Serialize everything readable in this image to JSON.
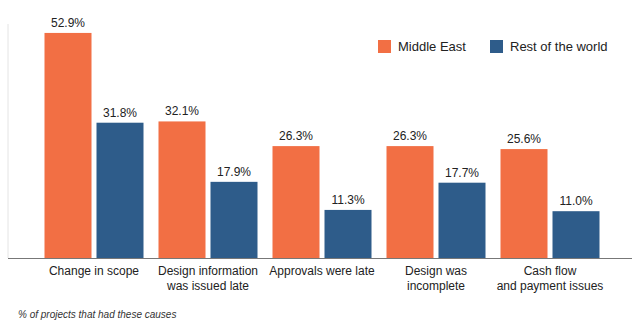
{
  "chart_data": {
    "type": "bar",
    "categories": [
      "Change in scope",
      "Design information\nwas issued late",
      "Approvals were late",
      "Design was\nincomplete",
      "Cash flow\nand payment issues"
    ],
    "series": [
      {
        "name": "Middle East",
        "color": "#f26f44",
        "values": [
          52.9,
          32.1,
          26.3,
          26.3,
          25.6
        ],
        "value_labels": [
          "52.9%",
          "32.1%",
          "26.3%",
          "26.3%",
          "25.6%"
        ]
      },
      {
        "name": "Rest of the world",
        "color": "#2e5c8a",
        "values": [
          31.8,
          17.9,
          11.3,
          17.7,
          11.0
        ],
        "value_labels": [
          "31.8%",
          "17.9%",
          "11.3%",
          "17.7%",
          "11.0%"
        ]
      }
    ],
    "ylim": [
      0,
      55
    ],
    "tick_labels": "x",
    "data_labels": true,
    "legend": "top-right",
    "grid": false,
    "annotations": [
      "% of projects that had these causes"
    ]
  }
}
